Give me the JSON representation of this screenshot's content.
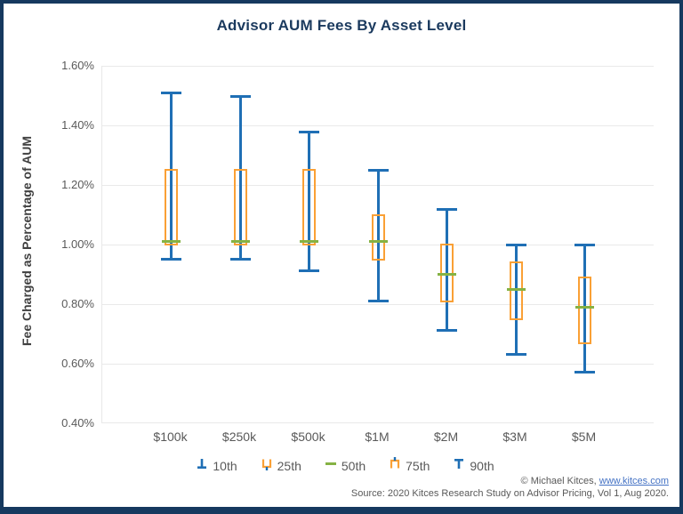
{
  "colors": {
    "frame_navy": "#16395f",
    "title_navy": "#1b3a5e",
    "whisker_blue": "#1f6fb5",
    "box_orange": "#faa035",
    "median_green": "#85b244",
    "axis_gray": "#595959",
    "gridline_gray": "#e9e9e9",
    "link_blue": "#4472c4"
  },
  "legend": {
    "items": [
      {
        "label": "10th",
        "icon": "whisker-bottom-icon",
        "color": "#1f6fb5"
      },
      {
        "label": "25th",
        "icon": "box-bottom-icon",
        "color": "#faa035"
      },
      {
        "label": "50th",
        "icon": "median-line-icon",
        "color": "#85b244"
      },
      {
        "label": "75th",
        "icon": "box-top-icon",
        "color": "#faa035"
      },
      {
        "label": "90th",
        "icon": "whisker-top-icon",
        "color": "#1f6fb5"
      }
    ]
  },
  "footer": {
    "copyright": "© Michael Kitces, ",
    "link": "www.kitces.com",
    "source": "Source: 2020 Kitces Research Study on Advisor Pricing, Vol 1, Aug 2020."
  },
  "chart_data": {
    "type": "boxplot",
    "title": "Advisor AUM Fees By Asset Level",
    "xlabel": "",
    "ylabel": "Fee Charged as Percentage of AUM",
    "categories": [
      "$100k",
      "$250k",
      "$500k",
      "$1M",
      "$2M",
      "$3M",
      "$5M"
    ],
    "percentile_keys": [
      "p10",
      "p25",
      "p50",
      "p75",
      "p90"
    ],
    "series": [
      {
        "category": "$100k",
        "p10": 0.95,
        "p25": 1.0,
        "p50": 1.01,
        "p75": 1.25,
        "p90": 1.51
      },
      {
        "category": "$250k",
        "p10": 0.95,
        "p25": 1.0,
        "p50": 1.01,
        "p75": 1.25,
        "p90": 1.5
      },
      {
        "category": "$500k",
        "p10": 0.91,
        "p25": 1.0,
        "p50": 1.01,
        "p75": 1.25,
        "p90": 1.38
      },
      {
        "category": "$1M",
        "p10": 0.81,
        "p25": 0.95,
        "p50": 1.01,
        "p75": 1.1,
        "p90": 1.25
      },
      {
        "category": "$2M",
        "p10": 0.71,
        "p25": 0.81,
        "p50": 0.9,
        "p75": 1.0,
        "p90": 1.12
      },
      {
        "category": "$3M",
        "p10": 0.63,
        "p25": 0.75,
        "p50": 0.85,
        "p75": 0.94,
        "p90": 1.0
      },
      {
        "category": "$5M",
        "p10": 0.57,
        "p25": 0.67,
        "p50": 0.79,
        "p75": 0.89,
        "p90": 1.0
      }
    ],
    "ylim": [
      0.4,
      1.6
    ],
    "yticks": [
      {
        "value": 1.6,
        "label": "1.60%"
      },
      {
        "value": 1.4,
        "label": "1.40%"
      },
      {
        "value": 1.2,
        "label": "1.20%"
      },
      {
        "value": 1.0,
        "label": "1.00%"
      },
      {
        "value": 0.8,
        "label": "0.80%"
      },
      {
        "value": 0.6,
        "label": "0.60%"
      },
      {
        "value": 0.4,
        "label": "0.40%"
      }
    ],
    "grid": true,
    "legend_position": "bottom"
  }
}
